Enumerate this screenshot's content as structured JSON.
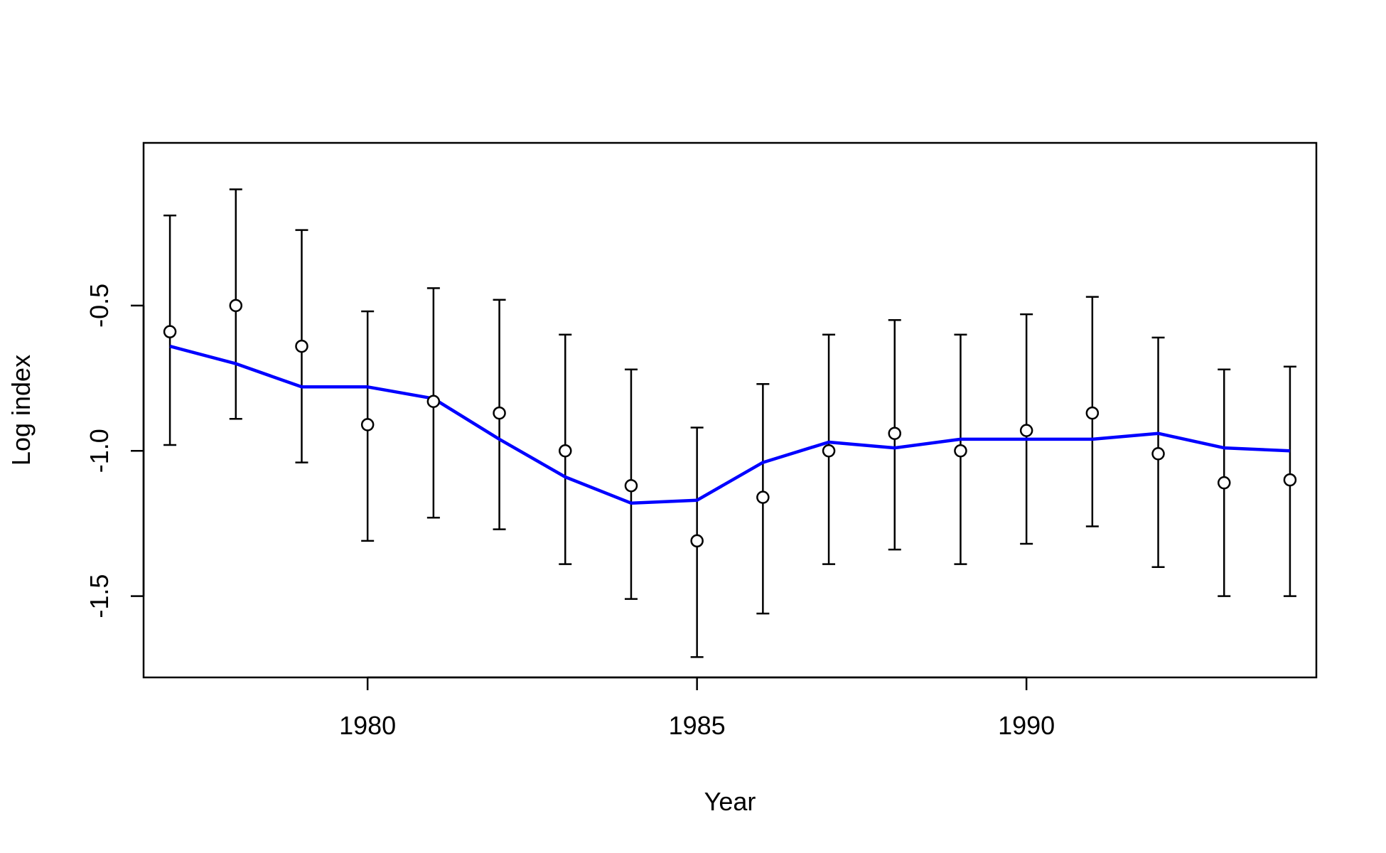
{
  "chart_data": {
    "type": "scatter",
    "title": "",
    "xlabel": "Year",
    "ylabel": "Log index",
    "xlim": [
      1976.6,
      1994.4
    ],
    "ylim": [
      -1.78,
      0.06
    ],
    "x_ticks": [
      1980,
      1985,
      1990
    ],
    "y_ticks": [
      -0.5,
      -1.0,
      -1.5
    ],
    "x_tick_labels": [
      "1980",
      "1985",
      "1990"
    ],
    "y_tick_labels": [
      "-0.5",
      "-1.0",
      "-1.5"
    ],
    "grid": false,
    "legend": "none",
    "series": [
      {
        "type": "scatter-errorbar",
        "marker": "open-circle",
        "color": "#000000",
        "x": [
          1977,
          1978,
          1979,
          1980,
          1981,
          1982,
          1983,
          1984,
          1985,
          1986,
          1987,
          1988,
          1989,
          1990,
          1991,
          1992,
          1993,
          1994
        ],
        "y": [
          -0.59,
          -0.5,
          -0.64,
          -0.91,
          -0.83,
          -0.87,
          -1.0,
          -1.12,
          -1.31,
          -1.16,
          -1.0,
          -0.94,
          -1.0,
          -0.93,
          -0.87,
          -1.01,
          -1.11,
          -1.1
        ],
        "lower": [
          -0.98,
          -0.89,
          -1.04,
          -1.31,
          -1.23,
          -1.27,
          -1.39,
          -1.51,
          -1.71,
          -1.56,
          -1.39,
          -1.34,
          -1.39,
          -1.32,
          -1.26,
          -1.4,
          -1.5,
          -1.5
        ],
        "upper": [
          -0.19,
          -0.1,
          -0.24,
          -0.52,
          -0.44,
          -0.48,
          -0.6,
          -0.72,
          -0.92,
          -0.77,
          -0.6,
          -0.55,
          -0.6,
          -0.53,
          -0.47,
          -0.61,
          -0.72,
          -0.71
        ]
      },
      {
        "type": "line",
        "color": "#0000ff",
        "x": [
          1977,
          1978,
          1979,
          1980,
          1981,
          1982,
          1983,
          1984,
          1985,
          1986,
          1987,
          1988,
          1989,
          1990,
          1991,
          1992,
          1993,
          1994
        ],
        "y": [
          -0.64,
          -0.7,
          -0.78,
          -0.78,
          -0.82,
          -0.96,
          -1.09,
          -1.18,
          -1.17,
          -1.04,
          -0.97,
          -0.99,
          -0.96,
          -0.96,
          -0.96,
          -0.94,
          -0.99,
          -1.0
        ]
      }
    ]
  }
}
